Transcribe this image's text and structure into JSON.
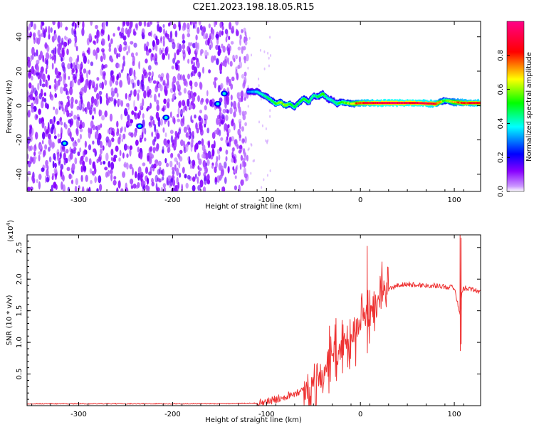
{
  "title": "C2E1.2023.198.18.05.R15",
  "chart_data": [
    {
      "type": "heatmap",
      "xlabel": "Height of straight line (km)",
      "ylabel": "Frequency (Hz)",
      "xlim": [
        -355,
        128
      ],
      "ylim": [
        -50,
        49
      ],
      "x_ticks": [
        -300,
        -200,
        -100,
        0,
        100
      ],
      "y_ticks": [
        -40,
        -20,
        0,
        20,
        40
      ],
      "colorbar": {
        "label": "Normalized spectral amplitude",
        "range": [
          0,
          1
        ],
        "ticks": [
          "0.0",
          "0.2",
          "0.4",
          "0.6",
          "0.8"
        ],
        "colors": [
          "#ffffff",
          "#8800ff",
          "#0000ff",
          "#00ffff",
          "#00ff00",
          "#ffff00",
          "#ff0000",
          "#ff0088"
        ]
      },
      "noise_region_x": [
        -355,
        -120
      ],
      "ridge": {
        "x": [
          -120,
          -110,
          -100,
          -95,
          -90,
          -85,
          -80,
          -75,
          -70,
          -65,
          -60,
          -55,
          -50,
          -45,
          -40,
          -35,
          -30,
          -25,
          -20,
          -10,
          0,
          20,
          60,
          80,
          90,
          100,
          110,
          128
        ],
        "freq": [
          8,
          8,
          5,
          3,
          1,
          2,
          0,
          1,
          -1,
          2,
          4,
          2,
          6,
          5,
          7,
          4,
          3,
          1,
          2,
          1,
          1.5,
          1.5,
          1.5,
          1,
          3,
          2,
          1.5,
          1.5
        ],
        "amplitude": [
          0.3,
          0.4,
          0.45,
          0.5,
          0.55,
          0.6,
          0.65,
          0.55,
          0.5,
          0.5,
          0.55,
          0.5,
          0.45,
          0.5,
          0.55,
          0.45,
          0.45,
          0.5,
          0.55,
          0.65,
          0.85,
          0.95,
          0.95,
          0.9,
          0.55,
          0.75,
          0.85,
          0.9
        ]
      },
      "hot_spots": [
        {
          "x": -315,
          "freq": -22
        },
        {
          "x": -235,
          "freq": -12
        },
        {
          "x": -207,
          "freq": -7
        },
        {
          "x": -152,
          "freq": 1
        },
        {
          "x": -145,
          "freq": 7
        }
      ]
    },
    {
      "type": "line",
      "xlabel": "Height of straight line (km)",
      "ylabel": "SNR (10 * v/v)",
      "y_scale_label": "(x10",
      "y_scale_exp": "4",
      "y_scale_close": ")",
      "xlim": [
        -355,
        128
      ],
      "ylim": [
        0,
        2.7
      ],
      "x_ticks": [
        -300,
        -200,
        -100,
        0,
        100
      ],
      "y_ticks": [
        0.5,
        1.0,
        1.5,
        2.0,
        2.5
      ],
      "series": [
        {
          "color": "#ee3333",
          "x": [
            -355,
            -250,
            -150,
            -110,
            -100,
            -90,
            -80,
            -70,
            -60,
            -50,
            -40,
            -35,
            -30,
            -25,
            -20,
            -15,
            -10,
            -5,
            0,
            5,
            10,
            15,
            20,
            25,
            30,
            40,
            50,
            60,
            70,
            80,
            90,
            100,
            103,
            106,
            108,
            110,
            115,
            120,
            128
          ],
          "y": [
            0.03,
            0.03,
            0.03,
            0.04,
            0.06,
            0.1,
            0.15,
            0.2,
            0.25,
            0.35,
            0.5,
            0.7,
            0.8,
            0.85,
            0.95,
            1.0,
            1.05,
            1.15,
            1.25,
            1.35,
            1.45,
            1.6,
            1.7,
            1.78,
            1.84,
            1.9,
            1.92,
            1.91,
            1.9,
            1.9,
            1.88,
            1.87,
            1.65,
            1.45,
            1.8,
            1.85,
            1.86,
            1.83,
            1.8
          ]
        }
      ],
      "annotations": [
        {
          "x": 7,
          "y": 2.52
        },
        {
          "x": 106,
          "y": 2.7
        },
        {
          "x": 107,
          "y": 2.65
        }
      ]
    }
  ]
}
